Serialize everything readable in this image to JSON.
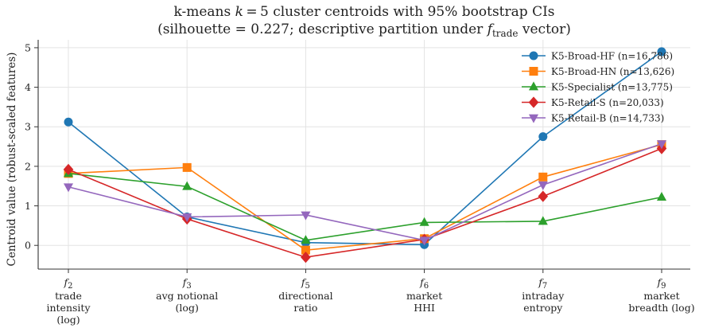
{
  "chart_data": {
    "type": "line",
    "title_line1": "k-means k = 5 cluster centroids with 95% bootstrap CIs",
    "title_line2": "(silhouette = 0.227; descriptive partition under f_trade vector)",
    "xlabel": "",
    "ylabel": "Centroid value (robust-scaled features)",
    "ylim": [
      -0.6,
      5.2
    ],
    "yticks": [
      0,
      1,
      2,
      3,
      4,
      5
    ],
    "grid": true,
    "legend_position": "top-right",
    "categories": [
      {
        "sym": "f2",
        "line1": "trade",
        "line2": "intensity",
        "line3": "(log)"
      },
      {
        "sym": "f3",
        "line1": "avg notional",
        "line2": "(log)",
        "line3": ""
      },
      {
        "sym": "f5",
        "line1": "directional",
        "line2": "ratio",
        "line3": ""
      },
      {
        "sym": "f6",
        "line1": "market",
        "line2": "HHI",
        "line3": ""
      },
      {
        "sym": "f7",
        "line1": "intraday",
        "line2": "entropy",
        "line3": ""
      },
      {
        "sym": "f9",
        "line1": "market",
        "line2": "breadth (log)",
        "line3": ""
      }
    ],
    "series": [
      {
        "name": "K5-Broad-HF (n=16,786)",
        "color": "#1f77b4",
        "marker": "circle",
        "values": [
          3.12,
          0.72,
          0.07,
          0.02,
          2.75,
          4.9
        ]
      },
      {
        "name": "K5-Broad-HN (n=13,626)",
        "color": "#ff7f0e",
        "marker": "square",
        "values": [
          1.82,
          1.97,
          -0.12,
          0.17,
          1.73,
          2.55
        ]
      },
      {
        "name": "K5-Specialist (n=13,775)",
        "color": "#2ca02c",
        "marker": "triangle-up",
        "values": [
          1.82,
          1.49,
          0.13,
          0.58,
          0.61,
          1.22
        ]
      },
      {
        "name": "K5-Retail-S (n=20,033)",
        "color": "#d62728",
        "marker": "diamond",
        "values": [
          1.92,
          0.67,
          -0.3,
          0.15,
          1.24,
          2.45
        ]
      },
      {
        "name": "K5-Retail-B (n=14,733)",
        "color": "#9467bd",
        "marker": "triangle-down",
        "values": [
          1.48,
          0.72,
          0.77,
          0.13,
          1.53,
          2.57
        ]
      }
    ]
  }
}
